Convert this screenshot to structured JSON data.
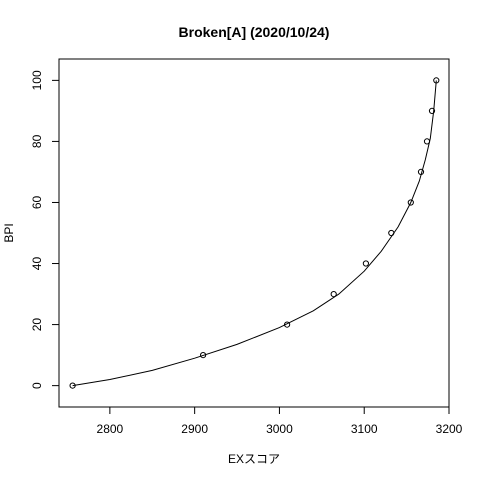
{
  "chart_data": {
    "type": "scatter",
    "title": "Broken[A] (2020/10/24)",
    "xlabel": "EXスコア",
    "ylabel": "BPI",
    "xlim": [
      2740,
      3200
    ],
    "ylim": [
      -7,
      107
    ],
    "x_ticks": [
      2800,
      2900,
      3000,
      3100,
      3200
    ],
    "y_ticks": [
      0,
      20,
      40,
      60,
      80,
      100
    ],
    "grid": false,
    "legend": "none",
    "series": [
      {
        "kind": "points",
        "marker": "open-circle",
        "x": [
          2756,
          2910,
          3009,
          3064,
          3102,
          3132,
          3155,
          3167,
          3174,
          3180,
          3185
        ],
        "y": [
          0,
          10,
          20,
          30,
          40,
          50,
          60,
          70,
          80,
          90,
          100
        ]
      },
      {
        "kind": "line",
        "x": [
          2756,
          2800,
          2850,
          2900,
          2950,
          3000,
          3040,
          3070,
          3100,
          3120,
          3140,
          3155,
          3165,
          3172,
          3178,
          3182,
          3185
        ],
        "y": [
          0,
          2,
          5,
          9,
          13.5,
          19,
          24.5,
          30,
          37.5,
          44,
          52,
          60,
          67,
          74,
          81,
          90,
          100
        ]
      }
    ]
  }
}
